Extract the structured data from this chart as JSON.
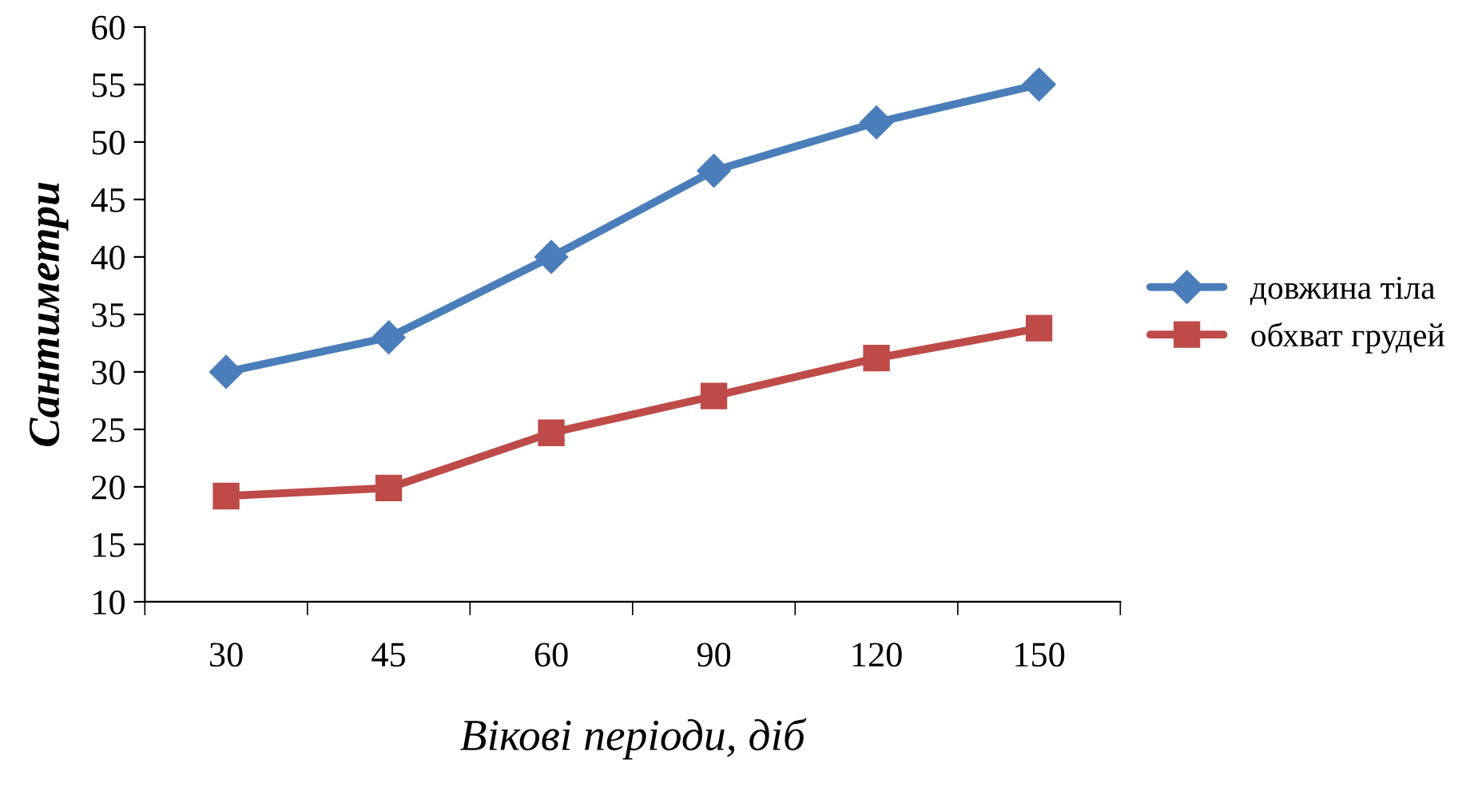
{
  "chart_data": {
    "type": "line",
    "xlabel": "Вікові періоди, діб",
    "ylabel": "Сантиметри",
    "categories": [
      "30",
      "45",
      "60",
      "90",
      "120",
      "150"
    ],
    "series": [
      {
        "name": "довжина тіла",
        "color": "#4a7ebb",
        "marker": "diamond",
        "values": [
          30,
          33,
          40,
          47.5,
          51.7,
          55
        ]
      },
      {
        "name": "обхват грудей",
        "color": "#be4b48",
        "marker": "square",
        "values": [
          19.2,
          19.9,
          24.7,
          27.9,
          31.2,
          33.8
        ]
      }
    ],
    "ylim": [
      10,
      60
    ],
    "yticks": [
      10,
      15,
      20,
      25,
      30,
      35,
      40,
      45,
      50,
      55,
      60
    ],
    "grid": false,
    "legend": "right",
    "line_style": "solid"
  }
}
